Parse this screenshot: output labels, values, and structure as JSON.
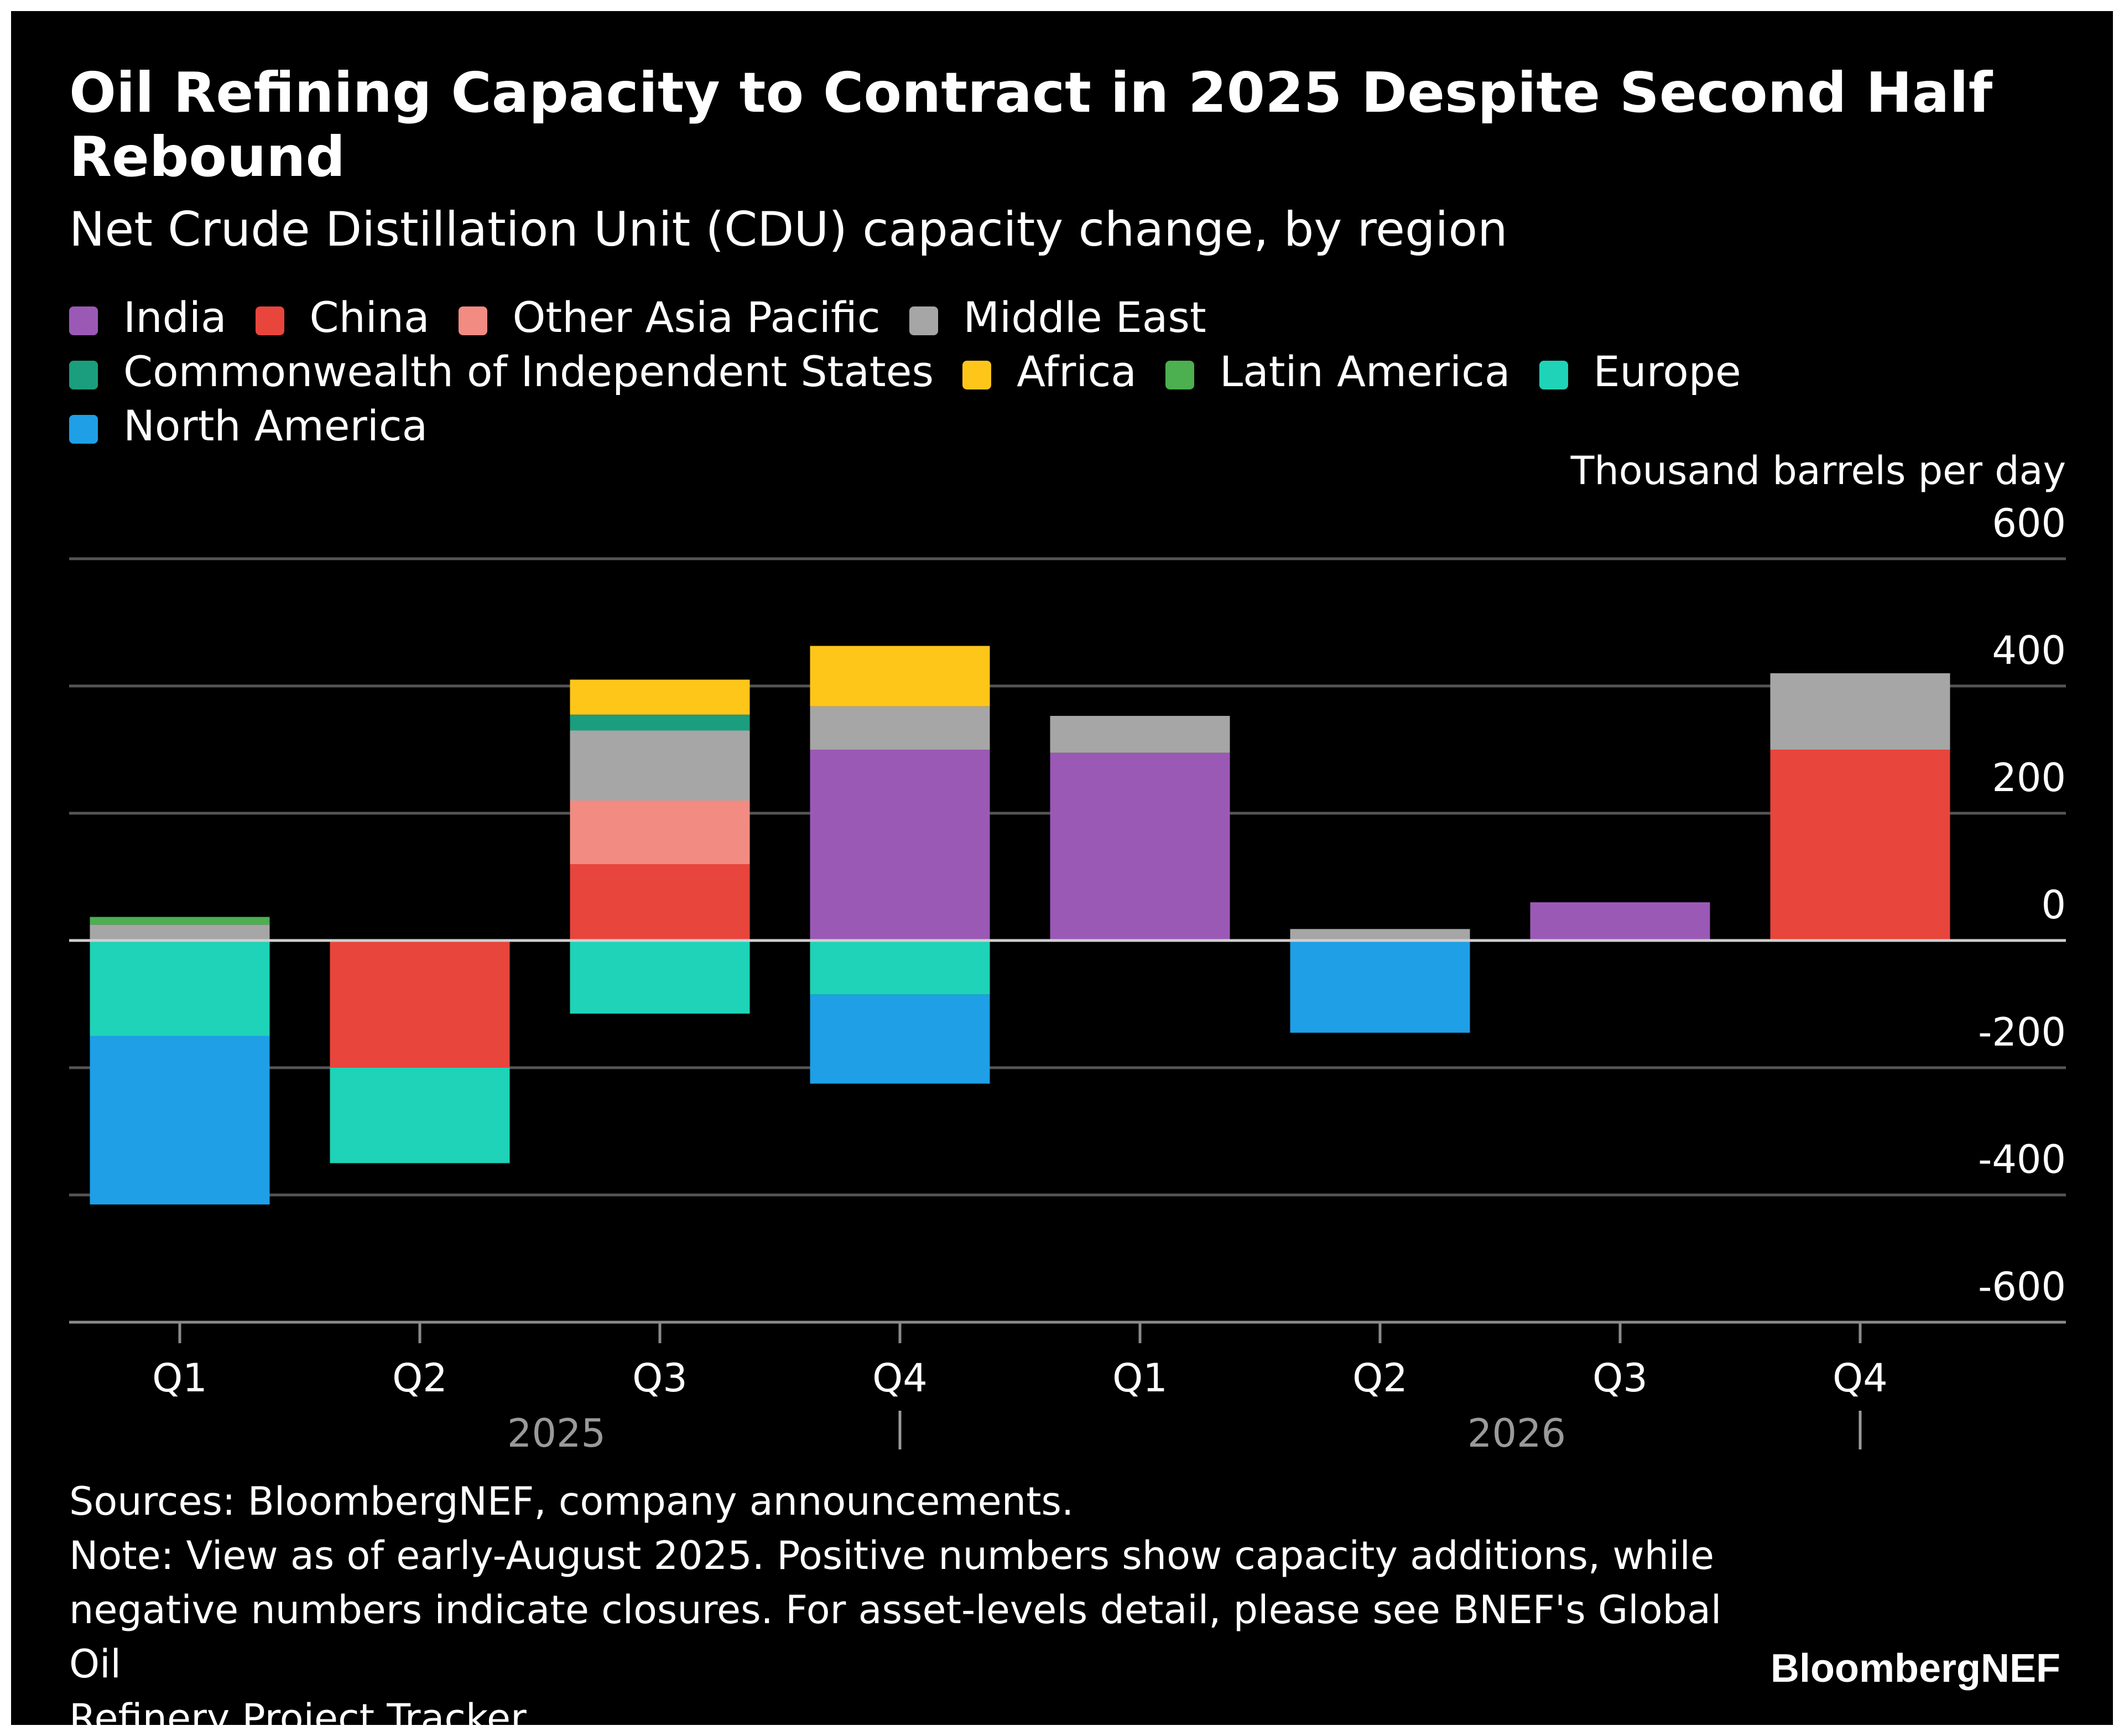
{
  "header": {
    "title": "Oil Refining Capacity to Contract in 2025 Despite Second Half Rebound",
    "subtitle": "Net Crude Distillation Unit (CDU) capacity change, by region"
  },
  "legend": {
    "rows": [
      [
        {
          "label": "India",
          "color": "#9B59B6"
        },
        {
          "label": "China",
          "color": "#E8453C"
        },
        {
          "label": "Other Asia Pacific",
          "color": "#F28B82"
        },
        {
          "label": "Middle East",
          "color": "#A6A6A6"
        }
      ],
      [
        {
          "label": "Commonwealth of Independent States",
          "color": "#1A9E7E"
        },
        {
          "label": "Africa",
          "color": "#FFC61A"
        },
        {
          "label": "Latin America",
          "color": "#4CAF50"
        },
        {
          "label": "Europe",
          "color": "#1ED3B7"
        }
      ],
      [
        {
          "label": "North America",
          "color": "#1E9FE6"
        }
      ]
    ]
  },
  "chart_data": {
    "type": "bar",
    "stacked": true,
    "unit_label": "Thousand barrels per day",
    "ylim": [
      -600,
      600
    ],
    "yticks": [
      600,
      400,
      200,
      0,
      -200,
      -400,
      -600
    ],
    "categories": [
      "Q1",
      "Q2",
      "Q3",
      "Q4",
      "Q1",
      "Q2",
      "Q3",
      "Q4"
    ],
    "year_groups": [
      {
        "label": "2025",
        "categories": [
          0,
          1,
          2,
          3
        ]
      },
      {
        "label": "2026",
        "categories": [
          4,
          5,
          6,
          7
        ]
      }
    ],
    "series": [
      {
        "name": "India",
        "values": [
          0,
          0,
          0,
          300,
          295,
          0,
          60,
          0
        ]
      },
      {
        "name": "China",
        "values": [
          0,
          -200,
          120,
          0,
          0,
          0,
          0,
          300
        ]
      },
      {
        "name": "Other Asia Pacific",
        "values": [
          0,
          0,
          100,
          0,
          0,
          0,
          0,
          0
        ]
      },
      {
        "name": "Middle East",
        "values": [
          25,
          0,
          110,
          68,
          58,
          18,
          0,
          120
        ]
      },
      {
        "name": "Commonwealth of Independent States",
        "values": [
          0,
          0,
          25,
          0,
          0,
          0,
          0,
          0
        ]
      },
      {
        "name": "Africa",
        "values": [
          0,
          0,
          55,
          95,
          0,
          0,
          0,
          0
        ]
      },
      {
        "name": "Latin America",
        "values": [
          12,
          0,
          0,
          0,
          0,
          0,
          0,
          0
        ]
      },
      {
        "name": "Europe",
        "values": [
          -150,
          -150,
          -115,
          -85,
          0,
          0,
          0,
          0
        ]
      },
      {
        "name": "North America",
        "values": [
          -265,
          0,
          0,
          -140,
          0,
          -145,
          0,
          0
        ]
      }
    ]
  },
  "footer": {
    "sources": "Sources: BloombergNEF, company announcements.",
    "note_line1": "Note: View as of early-August 2025. Positive numbers show capacity additions, while",
    "note_line2": "negative numbers indicate closures. For asset-levels detail, please see BNEF's Global Oil",
    "note_line3": "Refinery Project Tracker.",
    "brand": "BloombergNEF"
  }
}
